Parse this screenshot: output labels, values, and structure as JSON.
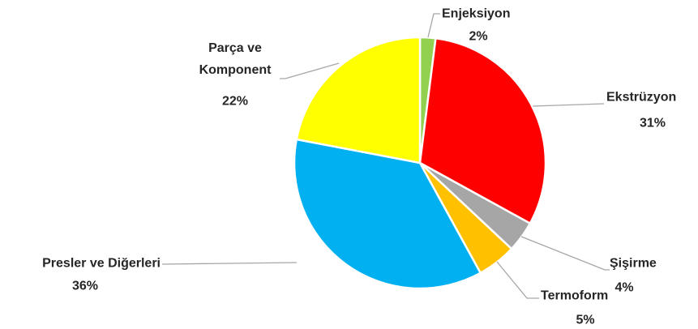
{
  "chart_data": {
    "type": "pie",
    "categories": [
      "Enjeksiyon",
      "Ekstrüzyon",
      "Şişirme",
      "Termoform",
      "Presler ve Diğerleri",
      "Parça ve Komponent"
    ],
    "values": [
      2,
      31,
      4,
      5,
      36,
      22
    ],
    "value_labels": [
      "2%",
      "31%",
      "4%",
      "5%",
      "36%",
      "22%"
    ],
    "colors": [
      "#92d050",
      "#ff0000",
      "#a6a6a6",
      "#ffc000",
      "#00b0f0",
      "#ffff00"
    ]
  }
}
